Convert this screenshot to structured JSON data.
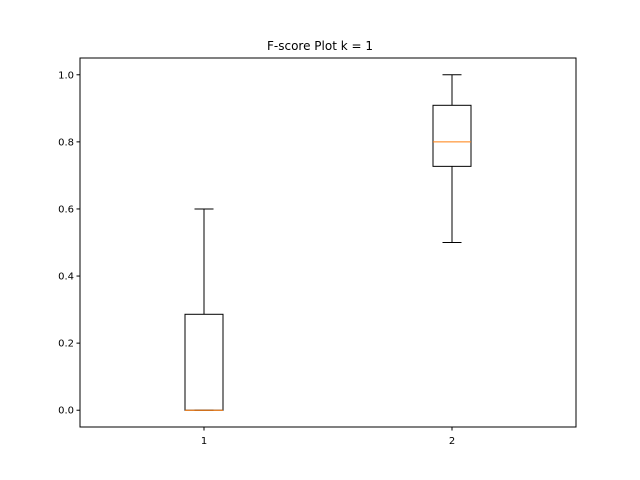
{
  "chart_data": {
    "type": "box",
    "title": "F-score Plot k = 1",
    "xlabel": "",
    "ylabel": "",
    "categories": [
      "1",
      "2"
    ],
    "boxes": [
      {
        "category": "1",
        "whisker_low": 0.0,
        "q1": 0.0,
        "median": 0.0,
        "q3": 0.286,
        "whisker_high": 0.6
      },
      {
        "category": "2",
        "whisker_low": 0.5,
        "q1": 0.727,
        "median": 0.8,
        "q3": 0.909,
        "whisker_high": 1.0
      }
    ],
    "ylim": [
      -0.05,
      1.05
    ],
    "xlim": [
      0.5,
      2.5
    ],
    "yticks": [
      0.0,
      0.2,
      0.4,
      0.6,
      0.8,
      1.0
    ],
    "ytick_labels": [
      "0.0",
      "0.2",
      "0.4",
      "0.6",
      "0.8",
      "1.0"
    ],
    "xticks": [
      1,
      2
    ],
    "xtick_labels": [
      "1",
      "2"
    ],
    "grid": false,
    "colors": {
      "box": "#000000",
      "median": "#ff7f0e",
      "axes": "#000000"
    }
  }
}
